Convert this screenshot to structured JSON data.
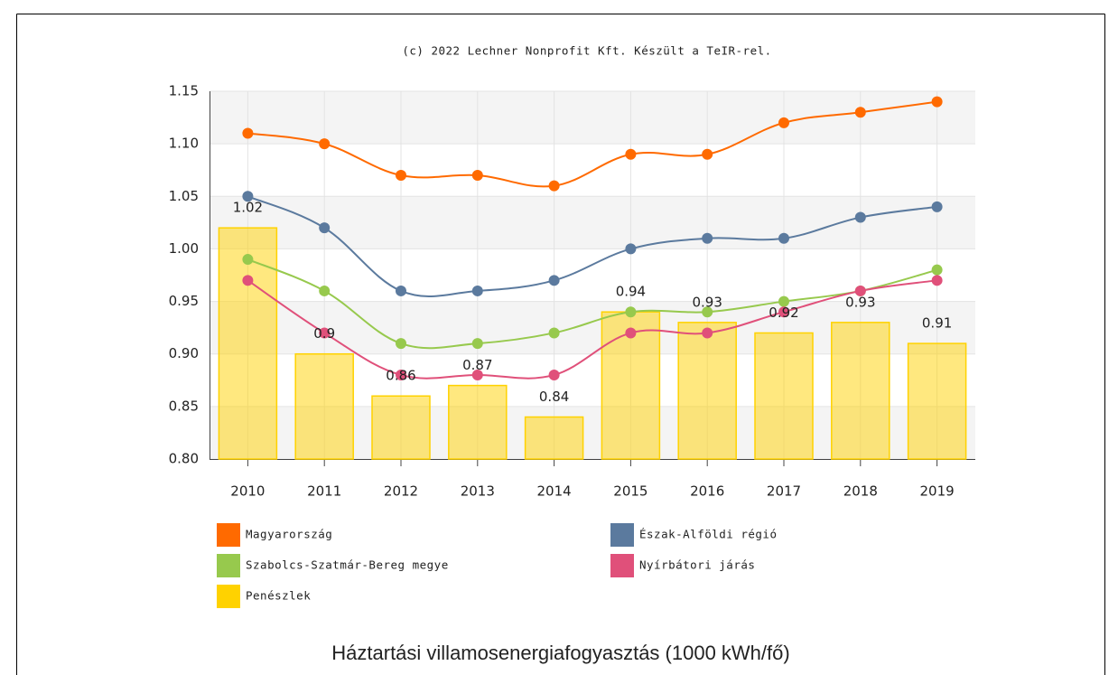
{
  "chart_data": {
    "type": "line",
    "subtitle": "(c) 2022 Lechner Nonprofit Kft. Készült a TeIR-rel.",
    "title": "Háztartási villamosenergiafogyasztás (1000 kWh/fő)",
    "categories": [
      "2010",
      "2011",
      "2012",
      "2013",
      "2014",
      "2015",
      "2016",
      "2017",
      "2018",
      "2019"
    ],
    "series": [
      {
        "name": "Magyarország",
        "color": "#ff6a00",
        "values": [
          1.11,
          1.1,
          1.07,
          1.07,
          1.06,
          1.09,
          1.09,
          1.12,
          1.13,
          1.14
        ]
      },
      {
        "name": "Észak-Alföldi régió",
        "color": "#5b7a9e",
        "values": [
          1.05,
          1.02,
          0.96,
          0.96,
          0.97,
          1.0,
          1.01,
          1.01,
          1.03,
          1.04
        ]
      },
      {
        "name": "Szabolcs-Szatmár-Bereg megye",
        "color": "#97c94d",
        "values": [
          0.99,
          0.96,
          0.91,
          0.91,
          0.92,
          0.94,
          0.94,
          0.95,
          0.96,
          0.98
        ]
      },
      {
        "name": "Nyírbátori járás",
        "color": "#e0507a",
        "values": [
          0.97,
          0.92,
          0.88,
          0.88,
          0.88,
          0.92,
          0.92,
          0.94,
          0.96,
          0.97
        ]
      },
      {
        "name": "Penészlek",
        "color": "#ffd200",
        "type": "bar",
        "values": [
          1.02,
          0.9,
          0.86,
          0.87,
          0.84,
          0.94,
          0.93,
          0.92,
          0.93,
          0.91
        ]
      }
    ],
    "ylim": [
      0.8,
      1.15
    ],
    "yticks": [
      {
        "value": 0.8,
        "label": "0.80"
      },
      0.85,
      {
        "value": 0.9,
        "label": "0.90"
      },
      0.95,
      {
        "value": 1.0,
        "label": "1.00"
      },
      1.05,
      {
        "value": 1.1,
        "label": "1.10"
      },
      1.15
    ],
    "grid": true
  }
}
